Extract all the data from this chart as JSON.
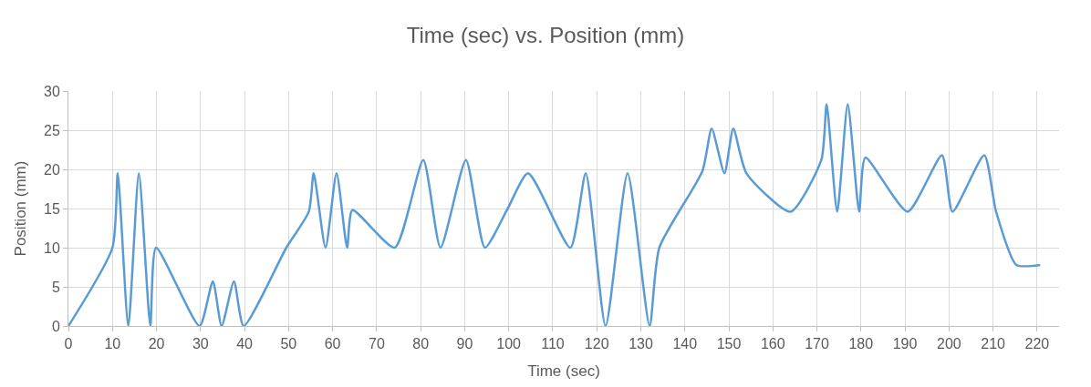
{
  "chart_data": {
    "type": "line",
    "title": "Time (sec) vs. Position (mm)",
    "xlabel": "Time (sec)",
    "ylabel": "Position (mm)",
    "series": [
      {
        "color": "#5b9bd5",
        "x": [
          0,
          10,
          11.2,
          13.6,
          16,
          18.6,
          19.9,
          29.8,
          32.8,
          34.8,
          37.6,
          39.8,
          49.5,
          54.6,
          55.7,
          58.4,
          60.9,
          63.3,
          64.5,
          74.1,
          80.6,
          84.5,
          90.3,
          94.6,
          99.6,
          104.4,
          114,
          117.5,
          122,
          127,
          132,
          134.2,
          144,
          146.1,
          149,
          151,
          154,
          164,
          171,
          172.2,
          174.6,
          177,
          179.6,
          181,
          190.6,
          198.4,
          200.8,
          208,
          210.7,
          215.3,
          220.7
        ],
        "values": [
          0,
          10,
          19.5,
          0,
          19.5,
          0,
          10,
          0,
          5.7,
          0,
          5.7,
          0,
          10,
          14.6,
          19.5,
          10,
          19.5,
          10,
          14.8,
          10,
          21.2,
          10,
          21.2,
          10,
          14.8,
          19.5,
          10,
          19.5,
          0,
          19.5,
          0,
          10,
          19.8,
          25.2,
          19.5,
          25.2,
          19.5,
          14.6,
          21.2,
          28.3,
          14.6,
          28.3,
          14.6,
          21.5,
          14.6,
          21.8,
          14.6,
          21.8,
          14.6,
          7.8,
          7.8
        ]
      }
    ],
    "xlim": [
      0,
      225
    ],
    "xticks": [
      0,
      10,
      20,
      30,
      40,
      50,
      60,
      70,
      80,
      90,
      100,
      110,
      120,
      130,
      140,
      150,
      160,
      170,
      180,
      190,
      200,
      210,
      220
    ],
    "ylim": [
      0,
      30
    ],
    "yticks": [
      0,
      5,
      10,
      15,
      20,
      25,
      30
    ],
    "grid": true,
    "legend": false,
    "marker": "none",
    "line_style": "solid"
  }
}
